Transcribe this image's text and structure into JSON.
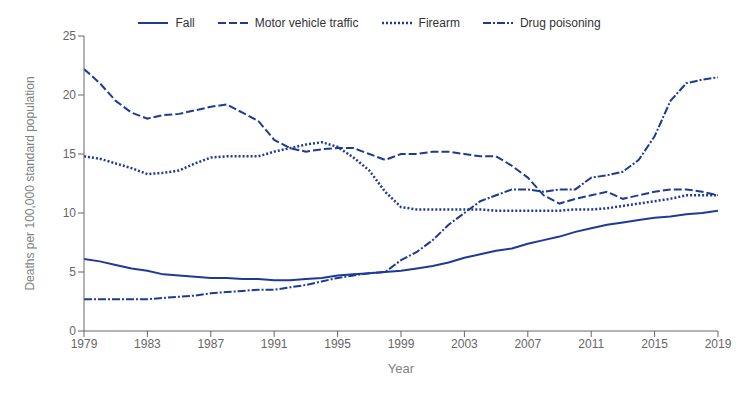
{
  "chart_data": {
    "type": "line",
    "xlabel": "Year",
    "ylabel": "Deaths per 100,000 standard population",
    "x": [
      1979,
      1980,
      1981,
      1982,
      1983,
      1984,
      1985,
      1986,
      1987,
      1988,
      1989,
      1990,
      1991,
      1992,
      1993,
      1994,
      1995,
      1996,
      1997,
      1998,
      1999,
      2000,
      2001,
      2002,
      2003,
      2004,
      2005,
      2006,
      2007,
      2008,
      2009,
      2010,
      2011,
      2012,
      2013,
      2014,
      2015,
      2016,
      2017,
      2018,
      2019
    ],
    "series": [
      {
        "name": "Fall",
        "line_style": "solid",
        "values": [
          6.1,
          5.9,
          5.6,
          5.3,
          5.1,
          4.8,
          4.7,
          4.6,
          4.5,
          4.5,
          4.4,
          4.4,
          4.3,
          4.3,
          4.4,
          4.5,
          4.7,
          4.8,
          4.9,
          5.0,
          5.1,
          5.3,
          5.5,
          5.8,
          6.2,
          6.5,
          6.8,
          7.0,
          7.4,
          7.7,
          8.0,
          8.4,
          8.7,
          9.0,
          9.2,
          9.4,
          9.6,
          9.7,
          9.9,
          10.0,
          10.2
        ]
      },
      {
        "name": "Motor vehicle traffic",
        "line_style": "dashed",
        "values": [
          22.2,
          21.0,
          19.5,
          18.5,
          18.0,
          18.3,
          18.4,
          18.7,
          19.0,
          19.2,
          18.5,
          17.8,
          16.2,
          15.5,
          15.2,
          15.4,
          15.5,
          15.5,
          15.0,
          14.5,
          15.0,
          15.0,
          15.2,
          15.2,
          15.0,
          14.8,
          14.8,
          14.0,
          13.0,
          11.5,
          10.8,
          11.2,
          11.5,
          11.8,
          11.2,
          11.5,
          11.8,
          12.0,
          12.0,
          11.8,
          11.5
        ]
      },
      {
        "name": "Firearm",
        "line_style": "dotted",
        "values": [
          14.8,
          14.6,
          14.2,
          13.8,
          13.3,
          13.4,
          13.6,
          14.2,
          14.7,
          14.8,
          14.8,
          14.8,
          15.2,
          15.5,
          15.8,
          16.0,
          15.6,
          14.7,
          13.6,
          11.8,
          10.5,
          10.3,
          10.3,
          10.3,
          10.3,
          10.3,
          10.2,
          10.2,
          10.2,
          10.2,
          10.2,
          10.3,
          10.3,
          10.4,
          10.6,
          10.8,
          11.0,
          11.2,
          11.5,
          11.5,
          11.5
        ]
      },
      {
        "name": "Drug poisoning",
        "line_style": "dashdot",
        "values": [
          2.7,
          2.7,
          2.7,
          2.7,
          2.7,
          2.8,
          2.9,
          3.0,
          3.2,
          3.3,
          3.4,
          3.5,
          3.5,
          3.7,
          3.9,
          4.2,
          4.5,
          4.7,
          4.9,
          5.0,
          6.0,
          6.7,
          7.7,
          9.0,
          10.0,
          11.0,
          11.5,
          12.0,
          12.0,
          11.8,
          12.0,
          12.0,
          13.0,
          13.2,
          13.5,
          14.5,
          16.5,
          19.5,
          21.0,
          21.3,
          21.5
        ]
      }
    ],
    "color": "#1f3a93",
    "xlim": [
      1979,
      2019
    ],
    "xticks": [
      1979,
      1983,
      1987,
      1991,
      1995,
      1999,
      2003,
      2007,
      2011,
      2015,
      2019
    ],
    "ylim": [
      0,
      25
    ],
    "yticks": [
      0,
      5,
      10,
      15,
      20,
      25
    ],
    "grid": false,
    "legend": "top"
  }
}
